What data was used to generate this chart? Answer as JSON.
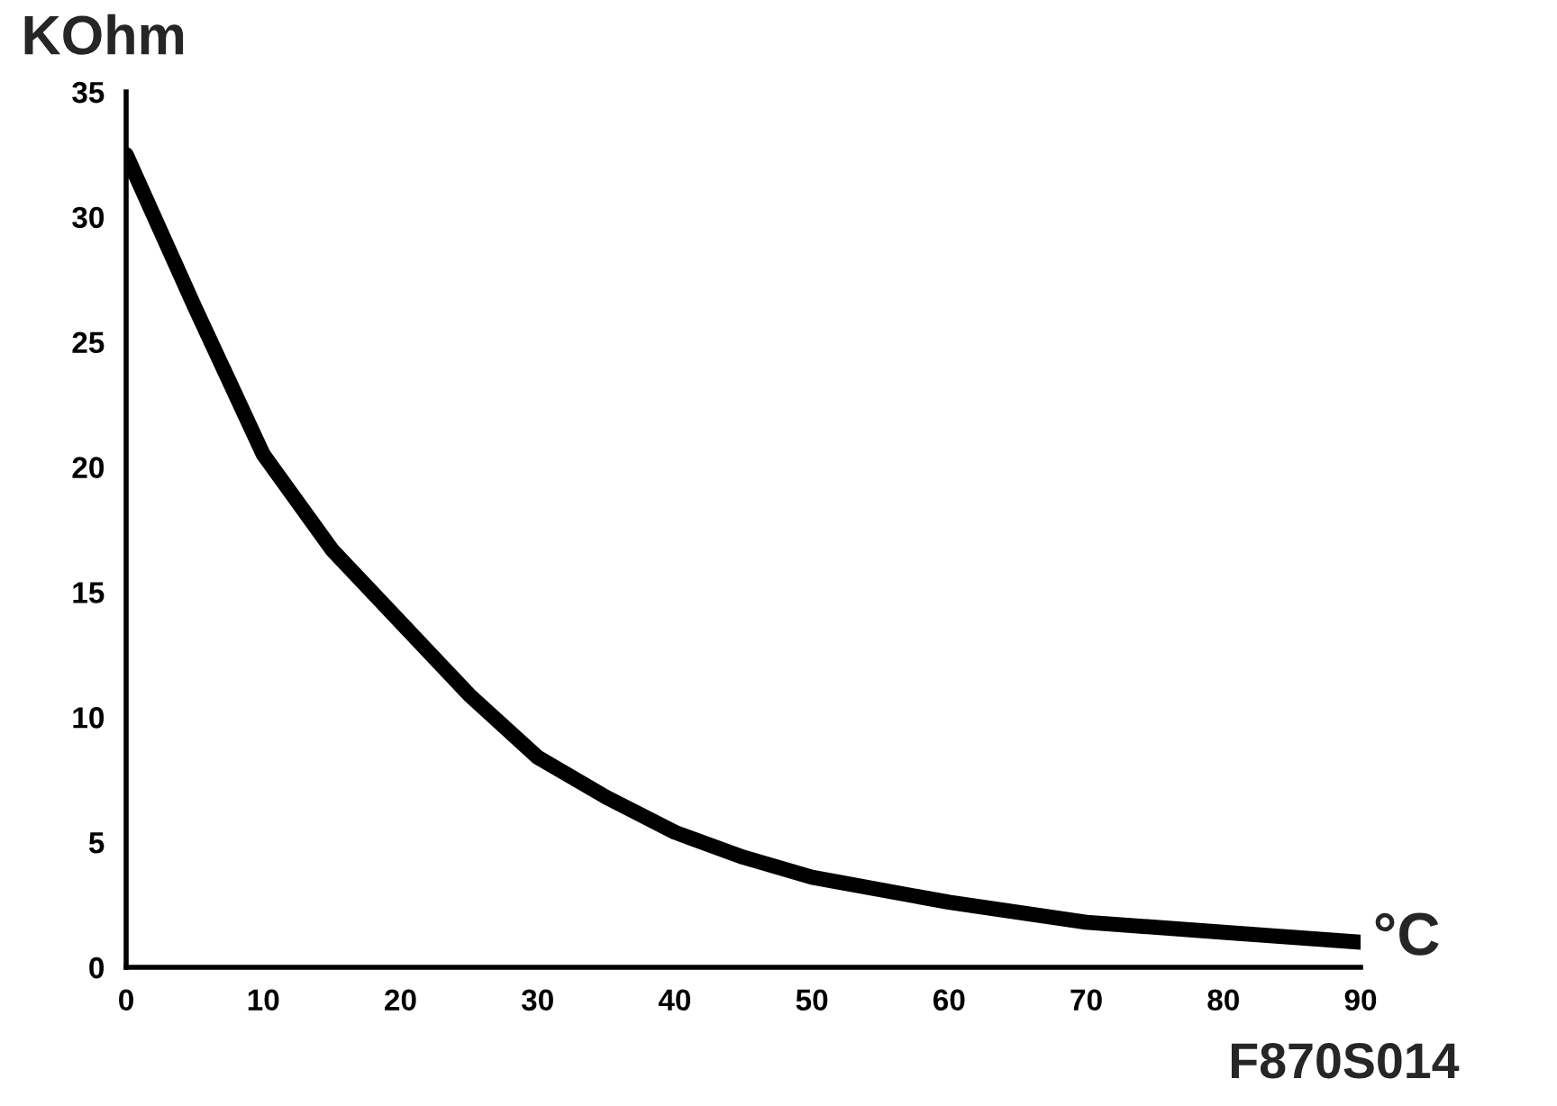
{
  "chart_data": {
    "type": "line",
    "xlabel": "°C",
    "ylabel": "KOhm",
    "annotations": [
      "F870S014"
    ],
    "x": [
      0,
      5,
      10,
      15,
      20,
      25,
      30,
      35,
      40,
      45,
      50,
      60,
      70,
      80,
      90
    ],
    "series": [
      {
        "color": "#000000",
        "values": [
          32.5,
          26.4,
          20.5,
          16.7,
          13.8,
          10.9,
          8.4,
          6.8,
          5.4,
          4.4,
          3.6,
          2.6,
          1.8,
          1.4,
          1.0
        ]
      }
    ],
    "xlim": [
      0,
      90
    ],
    "ylim": [
      0,
      35
    ],
    "xticks": [
      0,
      10,
      20,
      30,
      40,
      50,
      60,
      70,
      80,
      90
    ],
    "yticks": [
      0,
      5,
      10,
      15,
      20,
      25,
      30,
      35
    ],
    "grid": false,
    "legend": false,
    "marker": "none",
    "line_style": "solid"
  }
}
